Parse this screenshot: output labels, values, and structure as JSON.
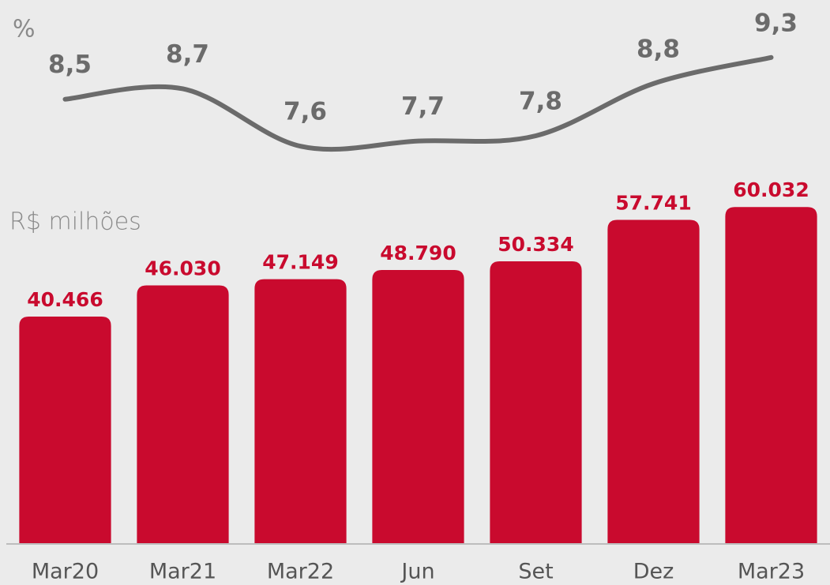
{
  "chart_data": {
    "type": "bar",
    "categories": [
      "Mar20",
      "Mar21",
      "Mar22",
      "Jun",
      "Set",
      "Dez",
      "Mar23"
    ],
    "y_label": "R$ milhões",
    "y2_label": "%",
    "ylim": [
      0,
      97000
    ],
    "y2lim": [
      0,
      10.4
    ],
    "series": [
      {
        "name": "R$ milhões",
        "type": "bar",
        "color": "#c90a2e",
        "values": [
          40466,
          46030,
          47149,
          48790,
          50334,
          57741,
          60032
        ],
        "value_labels": [
          "40.466",
          "46.030",
          "47.149",
          "48.790",
          "50.334",
          "57.741",
          "60.032"
        ]
      },
      {
        "name": "%",
        "type": "line",
        "axis": "y2",
        "color": "#6b6b6b",
        "values": [
          8.5,
          8.7,
          7.6,
          7.7,
          7.8,
          8.8,
          9.3
        ],
        "value_labels": [
          "8,5",
          "8,7",
          "7,6",
          "7,7",
          "7,8",
          "8,8",
          "9,3"
        ]
      }
    ]
  }
}
